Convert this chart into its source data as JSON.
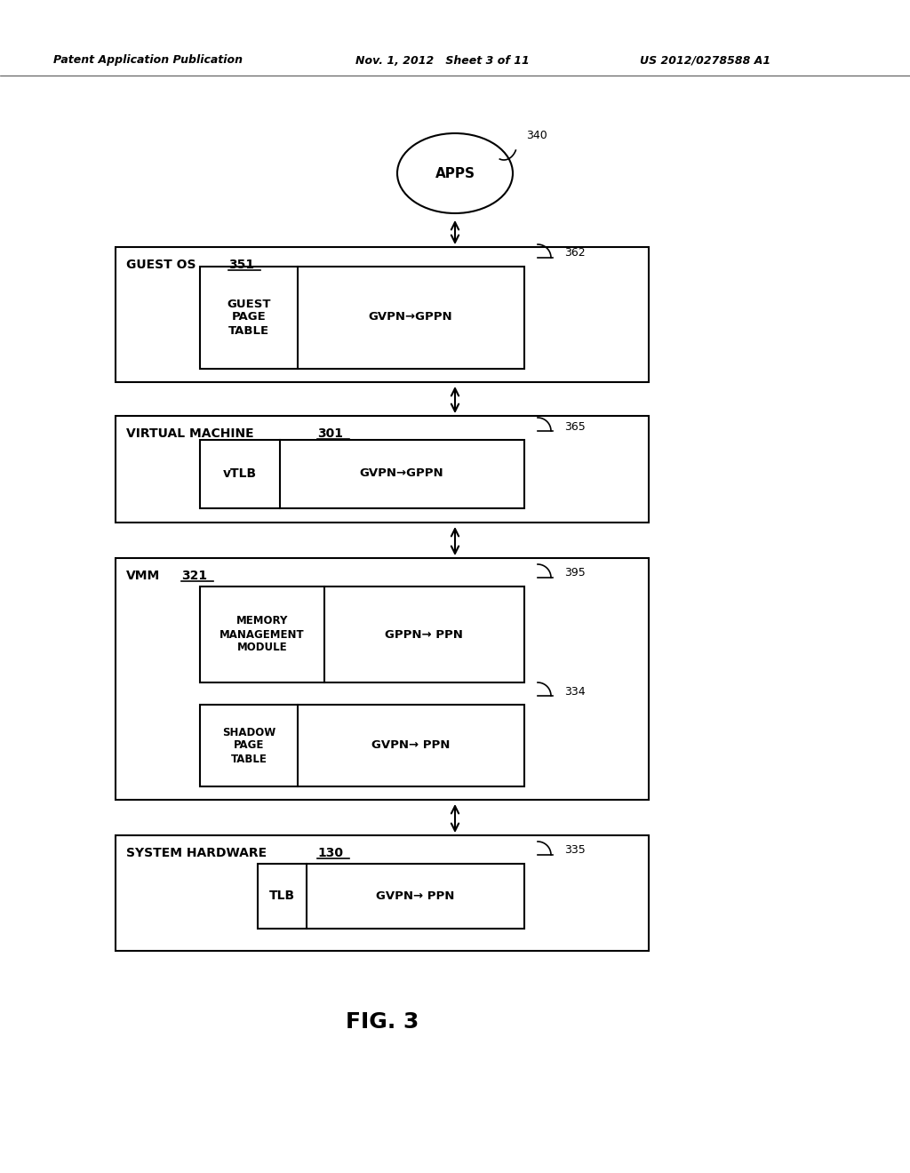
{
  "header_left": "Patent Application Publication",
  "header_mid": "Nov. 1, 2012   Sheet 3 of 11",
  "header_right": "US 2012/0278588 A1",
  "figure_label": "FIG. 3",
  "apps_label": "APPS",
  "apps_ref": "340",
  "guest_os_label": "GUEST OS",
  "guest_os_ref": "351",
  "guest_os_inner_ref": "362",
  "guest_os_left": "GUEST\nPAGE\nTABLE",
  "guest_os_right": "GVPN→GPPN",
  "vm_label": "VIRTUAL MACHINE",
  "vm_ref": "301",
  "vm_inner_ref": "365",
  "vm_left": "vTLB",
  "vm_right": "GVPN→GPPN",
  "vmm_label": "VMM",
  "vmm_ref": "321",
  "vmm_inner_ref1": "395",
  "vmm_left1": "MEMORY\nMANAGEMENT\nMODULE",
  "vmm_right1": "GPPN→ PPN",
  "vmm_inner_ref2": "334",
  "vmm_left2": "SHADOW\nPAGE\nTABLE",
  "vmm_right2": "GVPN→ PPN",
  "hw_label": "SYSTEM HARDWARE",
  "hw_ref": "130",
  "hw_inner_ref": "335",
  "hw_left": "TLB",
  "hw_right": "GVPN→ PPN",
  "bg_color": "#ffffff",
  "box_edge_color": "#000000",
  "text_color": "#000000"
}
